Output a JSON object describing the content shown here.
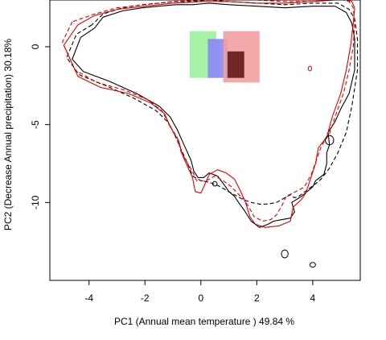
{
  "chart_data": {
    "type": "scatter",
    "xlabel": "PC1 (Annual mean temperature ) 49.84 %",
    "ylabel": "PC2 (Decrease Annual precipitation) 30.18%",
    "xlim": [
      -5.4,
      5.7
    ],
    "ylim": [
      -15.0,
      3.0
    ],
    "xticks": [
      -4,
      -2,
      0,
      2,
      4
    ],
    "yticks": [
      0,
      -5,
      -10
    ],
    "grid": false,
    "density_blocks": [
      {
        "x": [
          -0.4,
          0.55
        ],
        "y": [
          -2.0,
          1.0
        ],
        "color": "#a6f2a6",
        "opacity": 1.0
      },
      {
        "x": [
          0.25,
          0.95
        ],
        "y": [
          -2.0,
          0.5
        ],
        "color": "#8c8cf2",
        "opacity": 0.95
      },
      {
        "x": [
          0.8,
          2.1
        ],
        "y": [
          -2.3,
          1.0
        ],
        "color": "#f0a0a0",
        "opacity": 0.9
      },
      {
        "x": [
          0.95,
          1.55
        ],
        "y": [
          -2.0,
          -0.3
        ],
        "color": "#5a1010",
        "opacity": 0.85
      }
    ],
    "series": [
      {
        "line_color": "#000000",
        "line_style": "solid",
        "x": [
          -3.8,
          -4.3,
          -4.6,
          -4.2,
          -3.3,
          -2.3,
          -1.5,
          -1.1,
          -0.85,
          -0.6,
          -0.35,
          -0.25,
          -0.1,
          0.1,
          0.3,
          0.6,
          0.85,
          1.0,
          1.2,
          1.35,
          1.55,
          1.8,
          2.1,
          2.4,
          2.6,
          2.9,
          3.2,
          3.35,
          3.25,
          3.6,
          3.8,
          4.0,
          4.1,
          4.4,
          4.5,
          4.5,
          4.6,
          4.55,
          4.8,
          5.0,
          5.3,
          5.5,
          5.5,
          5.4,
          5.2,
          4.8,
          4.0,
          3.0,
          2.0,
          1.0,
          0.3,
          -0.3,
          -0.9,
          -1.5,
          -2.1,
          -2.8,
          -3.5,
          -3.8
        ],
        "y": [
          1.2,
          0.6,
          -0.8,
          -1.6,
          -2.2,
          -3.0,
          -3.8,
          -4.5,
          -5.3,
          -6.3,
          -7.3,
          -8.0,
          -8.4,
          -8.4,
          -8.1,
          -8.3,
          -8.9,
          -9.3,
          -9.6,
          -10.0,
          -10.5,
          -11.2,
          -11.6,
          -11.4,
          -11.2,
          -11.1,
          -11.0,
          -10.6,
          -10.0,
          -9.6,
          -9.3,
          -9.0,
          -8.6,
          -8.2,
          -7.5,
          -6.8,
          -6.3,
          -5.5,
          -4.8,
          -4.0,
          -3.0,
          -1.5,
          0.5,
          1.5,
          2.2,
          2.6,
          2.6,
          2.5,
          2.6,
          2.7,
          2.8,
          2.7,
          2.7,
          2.6,
          2.5,
          2.3,
          1.9,
          1.2
        ]
      },
      {
        "line_color": "#000000",
        "line_style": "dashed",
        "x": [
          -3.9,
          -4.45,
          -4.8,
          -4.35,
          -3.4,
          -2.4,
          -1.6,
          -1.2,
          -0.95,
          -0.7,
          -0.45,
          -0.3,
          0.0,
          0.3,
          0.6,
          0.9,
          1.2,
          1.5,
          1.8,
          2.1,
          2.4,
          2.7,
          3.0,
          3.2,
          3.35,
          3.5,
          3.8,
          4.1,
          4.3,
          4.6,
          4.9,
          5.2,
          5.4,
          5.6,
          5.6,
          5.5,
          5.3,
          4.9,
          4.0,
          3.0,
          2.0,
          1.0,
          0.3,
          -0.3,
          -0.9,
          -1.5,
          -2.1,
          -2.8,
          -3.5,
          -3.9
        ],
        "y": [
          1.4,
          0.8,
          -0.7,
          -1.8,
          -2.5,
          -3.3,
          -4.1,
          -4.8,
          -5.6,
          -6.6,
          -7.6,
          -8.3,
          -8.6,
          -8.7,
          -8.9,
          -9.2,
          -9.5,
          -9.8,
          -10.0,
          -10.1,
          -10.1,
          -10.0,
          -9.7,
          -9.5,
          -9.7,
          -9.6,
          -9.2,
          -8.8,
          -8.5,
          -7.8,
          -6.8,
          -5.5,
          -3.8,
          -1.5,
          0.5,
          1.8,
          2.4,
          2.8,
          2.8,
          2.7,
          2.8,
          2.9,
          3.0,
          2.9,
          2.9,
          2.8,
          2.7,
          2.5,
          2.1,
          1.4
        ]
      },
      {
        "line_color": "#e00000",
        "line_style": "solid",
        "x": [
          -4.4,
          -4.9,
          -4.4,
          -3.6,
          -2.6,
          -1.8,
          -1.3,
          -1.1,
          -0.95,
          -0.8,
          -0.65,
          -0.5,
          -0.3,
          -0.2,
          0.0,
          0.1,
          0.3,
          0.6,
          0.9,
          1.2,
          1.4,
          1.6,
          1.75,
          1.95,
          2.3,
          2.8,
          3.2,
          3.3,
          3.6,
          3.75,
          3.9,
          4.1,
          4.2,
          4.5,
          4.7,
          5.0,
          5.2,
          5.35,
          5.45,
          5.5,
          5.4,
          5.2,
          4.8,
          4.0,
          3.0,
          2.0,
          1.0,
          0.0,
          -1.0,
          -2.0,
          -3.0,
          -3.8,
          -4.4
        ],
        "y": [
          1.4,
          0.1,
          -1.9,
          -2.6,
          -3.0,
          -3.6,
          -4.3,
          -5.1,
          -5.6,
          -6.0,
          -7.0,
          -7.6,
          -8.4,
          -9.3,
          -9.4,
          -9.0,
          -8.2,
          -7.9,
          -8.1,
          -8.5,
          -9.2,
          -10.0,
          -10.9,
          -11.4,
          -11.6,
          -11.5,
          -11.2,
          -10.3,
          -9.8,
          -9.4,
          -8.6,
          -7.5,
          -6.5,
          -5.8,
          -4.5,
          -3.0,
          -1.5,
          0.0,
          1.5,
          2.5,
          2.9,
          3.0,
          3.0,
          2.9,
          2.8,
          2.8,
          2.9,
          2.9,
          2.8,
          2.6,
          2.4,
          2.0,
          1.4
        ]
      },
      {
        "line_color": "#e00000",
        "line_style": "dashed",
        "x": [
          -4.6,
          -4.95,
          -4.5,
          -3.7,
          -2.7,
          -1.9,
          -1.4,
          -1.15,
          -1.0,
          -0.85,
          -0.7,
          -0.5,
          -0.3,
          -0.15,
          0.2,
          0.5,
          0.8,
          1.1,
          1.3,
          1.55,
          1.75,
          1.9,
          2.2,
          2.5,
          2.7,
          2.9,
          3.05,
          3.4,
          3.7,
          3.95,
          4.15,
          4.3,
          4.6,
          4.8,
          5.1,
          5.3,
          5.45,
          5.5,
          5.45,
          5.3,
          5.1,
          4.7,
          4.0,
          3.0,
          2.0,
          1.0,
          0.0,
          -1.0,
          -2.0,
          -3.0,
          -3.8,
          -4.6
        ],
        "y": [
          1.6,
          0.3,
          -1.5,
          -2.3,
          -2.8,
          -3.4,
          -4.1,
          -4.9,
          -5.4,
          -5.8,
          -6.8,
          -7.4,
          -8.0,
          -8.6,
          -8.6,
          -8.3,
          -8.6,
          -9.0,
          -9.4,
          -9.8,
          -10.4,
          -10.9,
          -11.2,
          -11.1,
          -10.8,
          -10.2,
          -9.6,
          -9.3,
          -9.0,
          -8.2,
          -7.2,
          -6.4,
          -5.6,
          -4.5,
          -3.0,
          -1.5,
          0.0,
          1.5,
          2.5,
          2.9,
          3.0,
          3.0,
          2.9,
          2.9,
          3.0,
          3.0,
          3.0,
          2.9,
          2.7,
          2.5,
          2.1,
          1.6
        ]
      }
    ],
    "small_loops": [
      {
        "x": 0.5,
        "y": -8.8,
        "rx": 0.08,
        "ry": 0.15,
        "color": "#000000"
      },
      {
        "x": 4.6,
        "y": -6.0,
        "rx": 0.15,
        "ry": 0.3,
        "color": "#000000"
      },
      {
        "x": 3.0,
        "y": -13.3,
        "rx": 0.12,
        "ry": 0.25,
        "color": "#000000"
      },
      {
        "x": 4.0,
        "y": -14.0,
        "rx": 0.1,
        "ry": 0.15,
        "color": "#000000"
      },
      {
        "x": 3.9,
        "y": -1.4,
        "rx": 0.06,
        "ry": 0.15,
        "color": "#e00000"
      }
    ]
  }
}
